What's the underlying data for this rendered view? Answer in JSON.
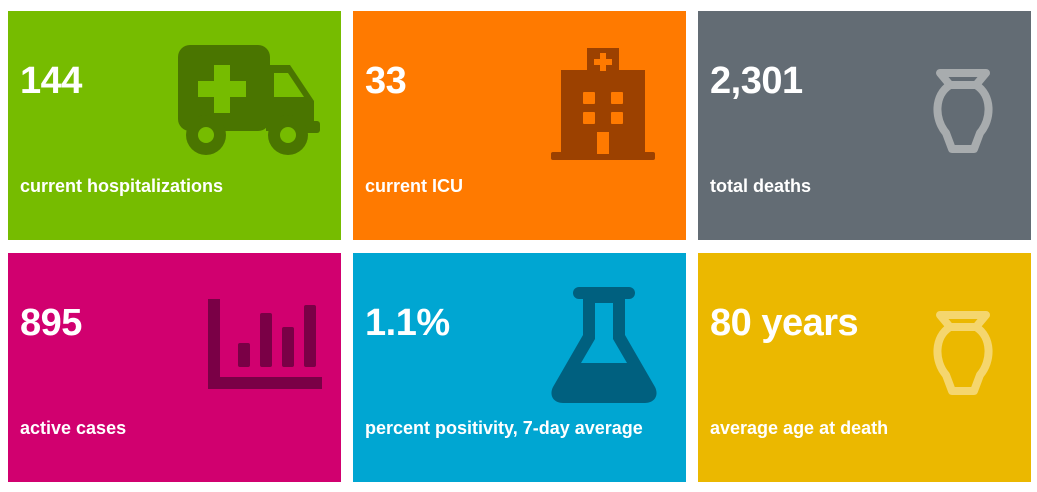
{
  "colors": {
    "green": "#76bc00",
    "orange": "#ff7a00",
    "gray": "#636c74",
    "magenta": "#d1006f",
    "blue": "#00a6d2",
    "yellow": "#ebb800"
  },
  "tiles": [
    {
      "value": "144",
      "label": "current hospitalizations",
      "icon": "ambulance-icon"
    },
    {
      "value": "33",
      "label": "current ICU",
      "icon": "hospital-icon"
    },
    {
      "value": "2,301",
      "label": "total deaths",
      "icon": "urn-icon"
    },
    {
      "value": "895",
      "label": "active cases",
      "icon": "bar-chart-icon"
    },
    {
      "value": "1.1%",
      "label": "percent positivity, 7-day average",
      "icon": "flask-icon"
    },
    {
      "value": "80 years",
      "label": "average age at death",
      "icon": "urn-icon"
    }
  ]
}
